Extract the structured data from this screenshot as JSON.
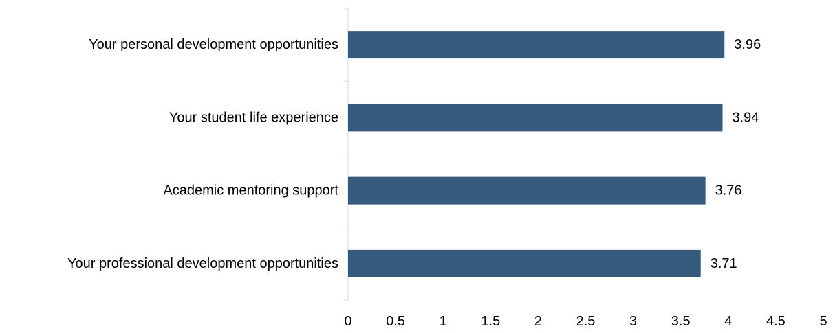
{
  "chart_data": {
    "type": "bar",
    "orientation": "horizontal",
    "categories": [
      "Your personal development opportunities",
      "Your student life experience",
      "Academic mentoring support",
      "Your professional development opportunities"
    ],
    "values": [
      3.96,
      3.94,
      3.76,
      3.71
    ],
    "value_labels": [
      "3.96",
      "3.94",
      "3.76",
      "3.71"
    ],
    "xlim": [
      0,
      5
    ],
    "x_ticks": [
      "0",
      "0.5",
      "1",
      "1.5",
      "2",
      "2.5",
      "3",
      "3.5",
      "4",
      "4.5",
      "5"
    ],
    "x_tick_values": [
      0,
      0.5,
      1,
      1.5,
      2,
      2.5,
      3,
      3.5,
      4,
      4.5,
      5
    ],
    "grid": false,
    "bar_color": "#375b7c",
    "axis_color": "#d9d9d9"
  }
}
